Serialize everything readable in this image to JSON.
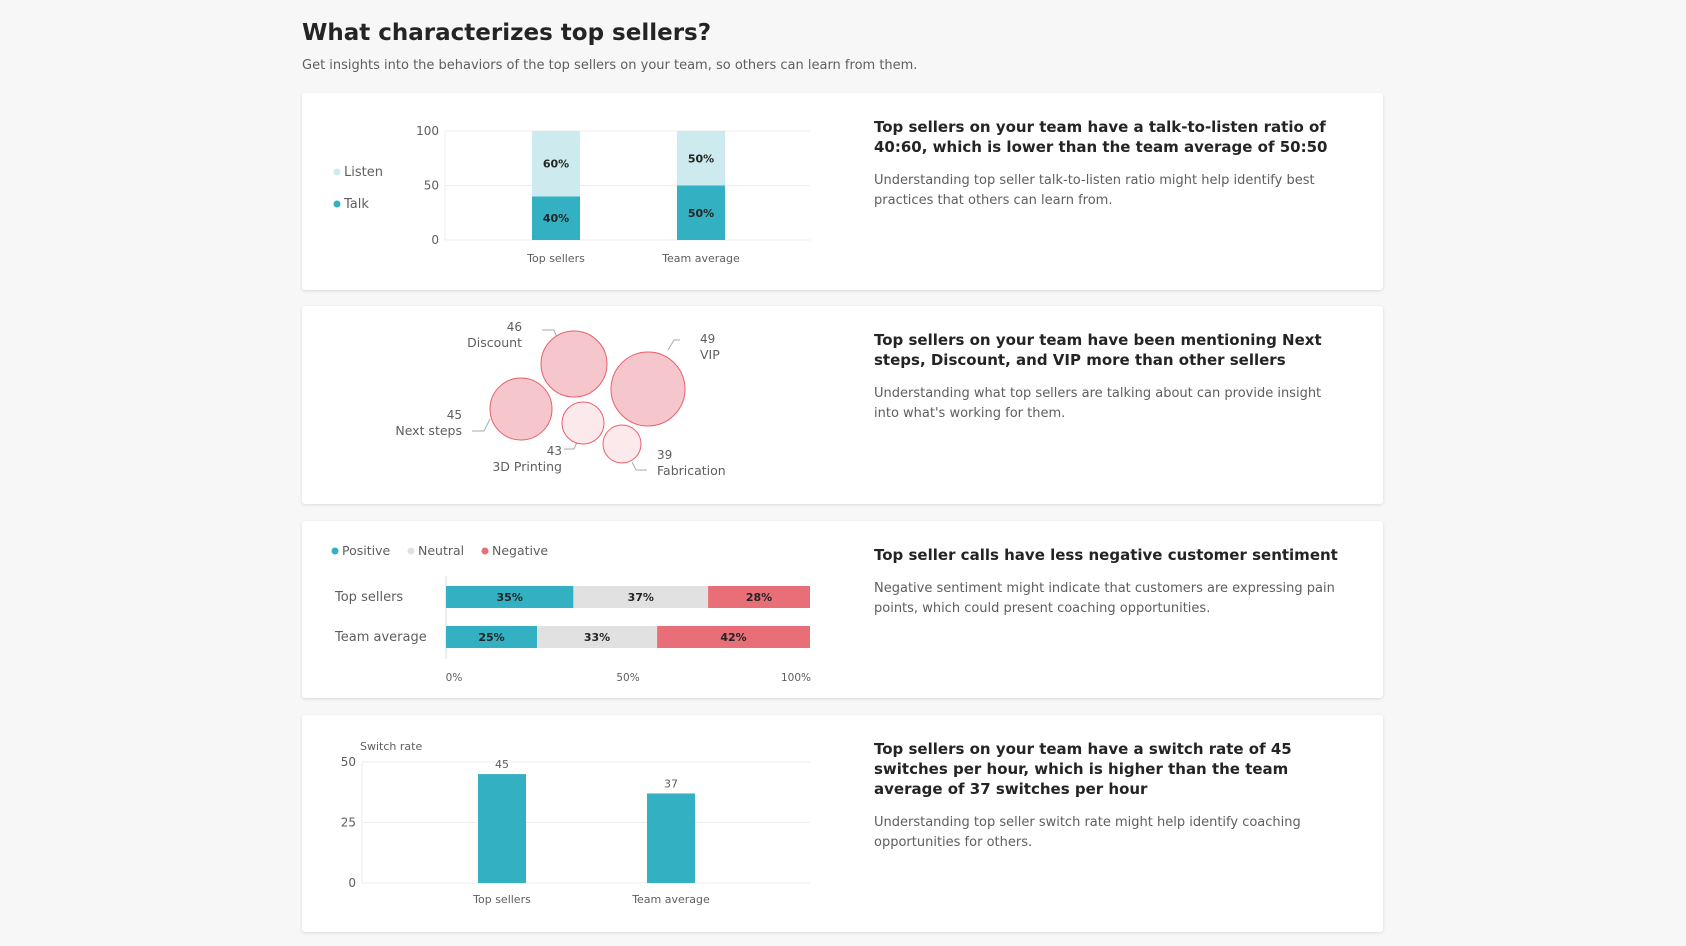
{
  "header": {
    "title": "What characterizes top sellers?",
    "subtitle": "Get insights into the behaviors of the top sellers on your team, so others can learn from them."
  },
  "colors": {
    "talk": "#33b0c1",
    "listen": "#cdebee",
    "positive": "#33b0c1",
    "neutral": "#e1e1e1",
    "negative": "#e86e78",
    "bubble_strong": "#f5c6cb",
    "bubble_light": "#fbe9eb",
    "bubble_stroke": "#e8606b"
  },
  "cards": [
    {
      "heading": "Top sellers on your team have a talk-to-listen ratio of 40:60, which is lower than the team average of 50:50",
      "description": "Understanding top seller talk-to-listen ratio might help identify best practices that others can learn from."
    },
    {
      "heading_parts": [
        "Top sellers on your team have been mentioning ",
        "Next steps",
        ", ",
        "Discount",
        ", and ",
        "VIP",
        " more than other sellers"
      ],
      "description": "Understanding what top sellers are talking about can provide insight into what's working for them."
    },
    {
      "heading": "Top seller calls have less negative customer sentiment",
      "description": "Negative sentiment might indicate that customers are expressing pain points, which could present coaching opportunities."
    },
    {
      "heading": "Top sellers on your team have a switch rate of 45 switches per hour, which is higher than the team average of 37 switches per hour",
      "description": "Understanding top seller switch rate might help identify coaching opportunities for others."
    }
  ],
  "chart_data": [
    {
      "type": "bar",
      "stacked": true,
      "categories": [
        "Top sellers",
        "Team average"
      ],
      "series": [
        {
          "name": "Talk",
          "values": [
            40,
            50
          ],
          "labels": [
            "40%",
            "50%"
          ]
        },
        {
          "name": "Listen",
          "values": [
            60,
            50
          ],
          "labels": [
            "60%",
            "50%"
          ]
        }
      ],
      "yticks": [
        "0",
        "50",
        "100"
      ],
      "ylim": [
        0,
        100
      ],
      "legend": "left",
      "grid": true
    },
    {
      "type": "scatter",
      "subtype": "bubble",
      "points": [
        {
          "label": "Discount",
          "value": 46,
          "strong": true
        },
        {
          "label": "VIP",
          "value": 49,
          "strong": true
        },
        {
          "label": "Next steps",
          "value": 45,
          "strong": true
        },
        {
          "label": "3D Printing",
          "value": 43,
          "strong": false
        },
        {
          "label": "Fabrication",
          "value": 39,
          "strong": false
        }
      ]
    },
    {
      "type": "bar",
      "orientation": "horizontal",
      "stacked": true,
      "categories": [
        "Top sellers",
        "Team average"
      ],
      "series": [
        {
          "name": "Positive",
          "values": [
            35,
            25
          ]
        },
        {
          "name": "Neutral",
          "values": [
            37,
            33
          ]
        },
        {
          "name": "Negative",
          "values": [
            28,
            42
          ]
        }
      ],
      "xticks": [
        "0%",
        "50%",
        "100%"
      ],
      "xlim": [
        0,
        100
      ],
      "legend": "top-left"
    },
    {
      "type": "bar",
      "categories": [
        "Top sellers",
        "Team average"
      ],
      "values": [
        45,
        37
      ],
      "ylabel": "Switch rate",
      "yticks": [
        "0",
        "25",
        "50"
      ],
      "ylim": [
        0,
        50
      ],
      "grid": true
    }
  ]
}
